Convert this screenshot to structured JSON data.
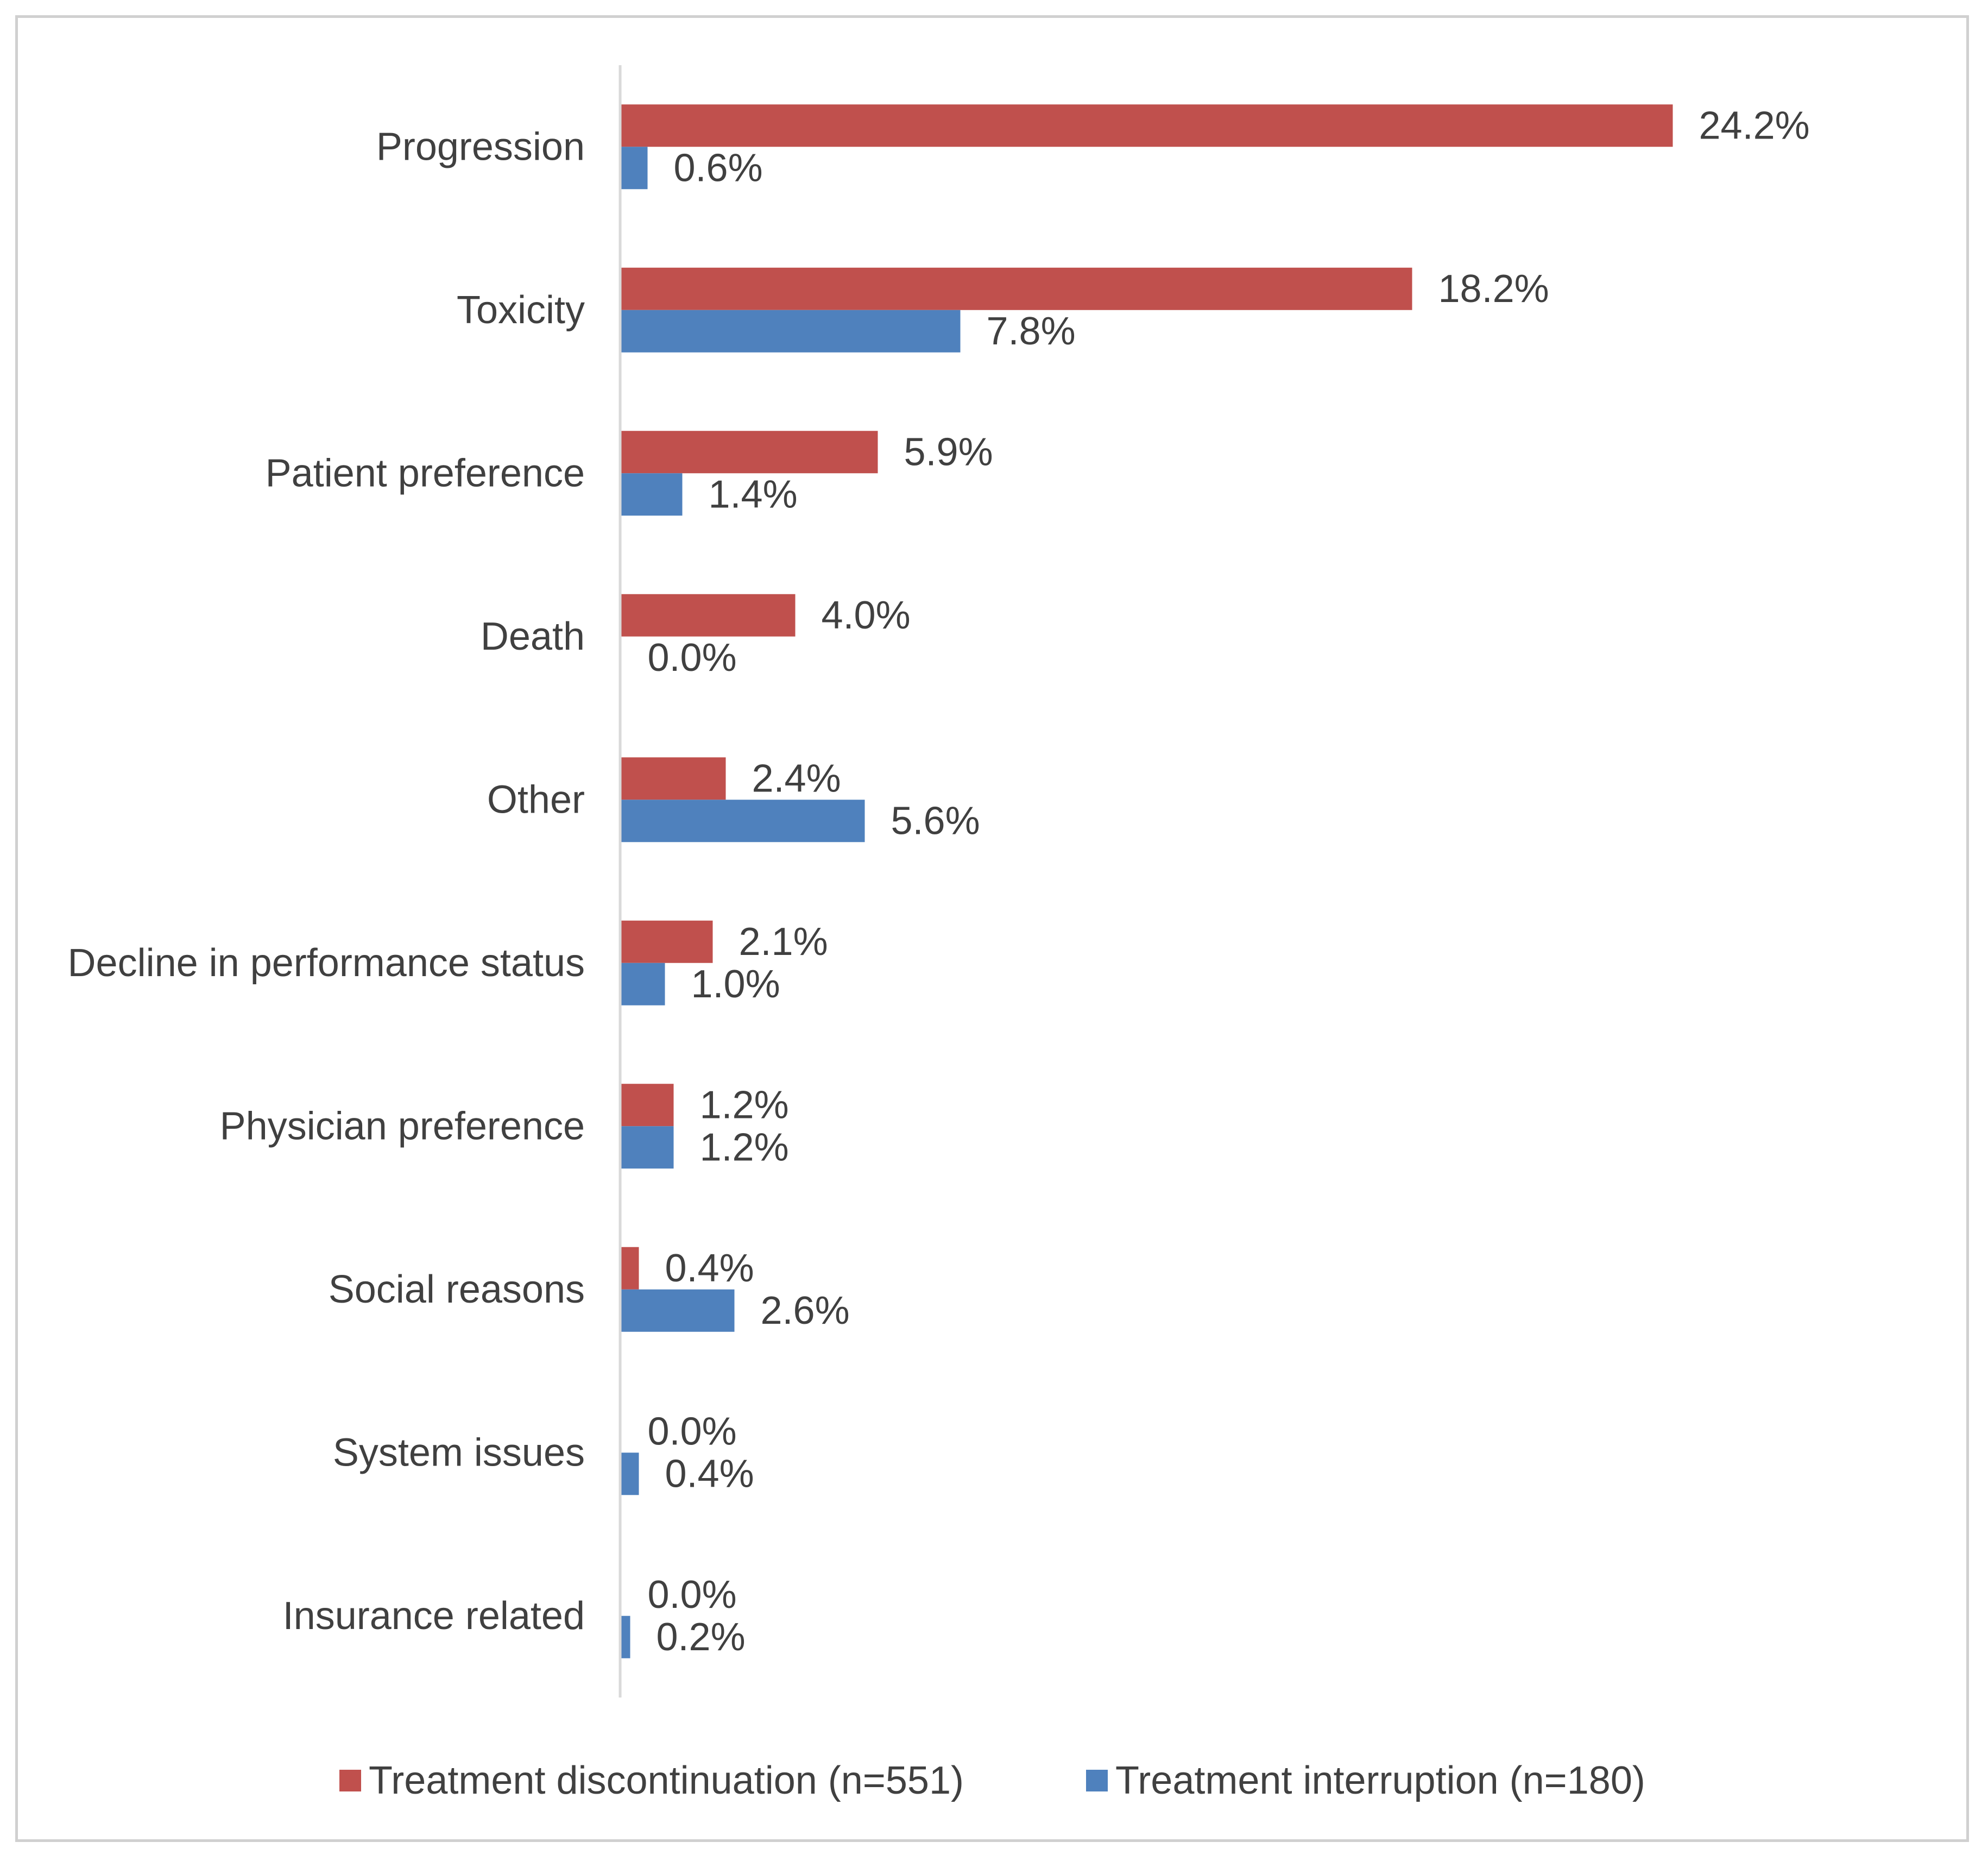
{
  "chart_data": {
    "type": "bar",
    "orientation": "horizontal",
    "categories": [
      "Progression",
      "Toxicity",
      "Patient preference",
      "Death",
      "Other",
      "Decline in performance status",
      "Physician preference",
      "Social reasons",
      "System issues",
      "Insurance related"
    ],
    "series": [
      {
        "name": "Treatment discontinuation (n=551)",
        "color": "#c0504d",
        "values": [
          24.2,
          18.2,
          5.9,
          4.0,
          2.4,
          2.1,
          1.2,
          0.4,
          0.0,
          0.0
        ],
        "labels": [
          "24.2%",
          "18.2%",
          "5.9%",
          "4.0%",
          "2.4%",
          "2.1%",
          "1.2%",
          "0.4%",
          "0.0%",
          "0.0%"
        ]
      },
      {
        "name": "Treatment interruption (n=180)",
        "color": "#4f81bd",
        "values": [
          0.6,
          7.8,
          1.4,
          0.0,
          5.6,
          1.0,
          1.2,
          2.6,
          0.4,
          0.2
        ],
        "labels": [
          "0.6%",
          "7.8%",
          "1.4%",
          "0.0%",
          "5.6%",
          "1.0%",
          "1.2%",
          "2.6%",
          "0.4%",
          "0.2%"
        ]
      }
    ],
    "xlim": [
      0,
      26
    ],
    "grid": false,
    "legend_position": "bottom",
    "axis_color": "#d9d9d9"
  }
}
